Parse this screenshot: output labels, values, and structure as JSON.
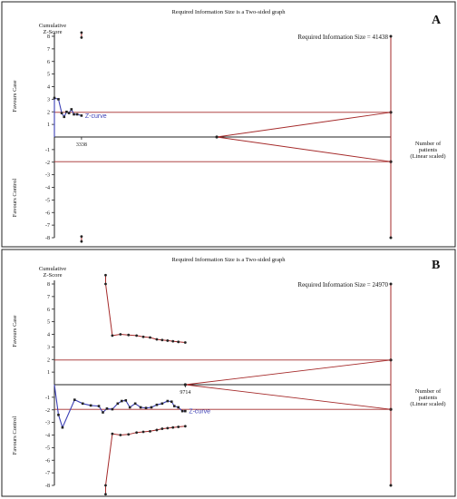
{
  "colors": {
    "boundary": "#a52a2a",
    "z_curve": "#3b3fb5",
    "axis": "#222222",
    "marker": "#222222"
  },
  "chart_data": [
    {
      "type": "line",
      "panel_label": "A",
      "title": "Required Information Size is a Two-sided graph",
      "ylabel_line1": "Cumulative",
      "ylabel_line2": "Z-Score",
      "xlabel_line1": "Number of",
      "xlabel_line2": "patients",
      "xlabel_line3": "(Linear scaled)",
      "favours_case": "Favours Case",
      "favours_control": "Favours Control",
      "ylim": [
        -8,
        8
      ],
      "xlim": [
        0,
        41438
      ],
      "yticks": [
        8,
        7,
        6,
        5,
        4,
        3,
        2,
        1,
        -1,
        -2,
        -3,
        -4,
        -5,
        -6,
        -7,
        -8
      ],
      "required_information_size": 41438,
      "ris_label": "Required Information Size = 41438",
      "x_annotation": "3338",
      "x_annotation_value": 3338,
      "z_curve_label": "Z-curve",
      "conventional_boundary": 1.96,
      "futility_wedge": {
        "x_start": 20000,
        "x_end": 41438,
        "y_end": 1.96
      },
      "upper_monitoring_boundary": [
        {
          "x": 3338,
          "y": 8.3
        },
        {
          "x": 3338,
          "y": 7.9
        }
      ],
      "lower_monitoring_boundary": [
        {
          "x": 3338,
          "y": -7.9
        },
        {
          "x": 3338,
          "y": -8.3
        }
      ],
      "z_curve": [
        {
          "x": 0,
          "y": 0
        },
        {
          "x": 0,
          "y": 3.1
        },
        {
          "x": 500,
          "y": 3.0
        },
        {
          "x": 900,
          "y": 1.9
        },
        {
          "x": 1200,
          "y": 1.6
        },
        {
          "x": 1500,
          "y": 2.0
        },
        {
          "x": 1800,
          "y": 1.9
        },
        {
          "x": 2100,
          "y": 2.2
        },
        {
          "x": 2400,
          "y": 1.8
        },
        {
          "x": 2800,
          "y": 1.8
        },
        {
          "x": 3338,
          "y": 1.7
        }
      ]
    },
    {
      "type": "line",
      "panel_label": "B",
      "title": "Required Information Size is a Two-sided graph",
      "ylabel_line1": "Cumulative",
      "ylabel_line2": "Z-Score",
      "xlabel_line1": "Number of",
      "xlabel_line2": "patients",
      "xlabel_line3": "(Linear scaled)",
      "favours_case": "Favours Case",
      "favours_control": "Favours Control",
      "ylim": [
        -8,
        8
      ],
      "xlim": [
        0,
        24970
      ],
      "yticks": [
        8,
        7,
        6,
        5,
        4,
        3,
        2,
        1,
        -1,
        -2,
        -3,
        -4,
        -5,
        -6,
        -7,
        -8
      ],
      "required_information_size": 24970,
      "ris_label": "Required Information Size = 24970",
      "x_annotation": "9714",
      "x_annotation_value": 9714,
      "z_curve_label": "Z-curve",
      "conventional_boundary": 1.96,
      "futility_wedge": {
        "x_start": 9714,
        "x_end": 24970,
        "y_end": 1.96
      },
      "upper_monitoring_boundary": [
        {
          "x": 3800,
          "y": 8.7
        },
        {
          "x": 3800,
          "y": 8.0
        },
        {
          "x": 4300,
          "y": 3.9
        },
        {
          "x": 4900,
          "y": 4.0
        },
        {
          "x": 5500,
          "y": 3.95
        },
        {
          "x": 6100,
          "y": 3.9
        },
        {
          "x": 6600,
          "y": 3.8
        },
        {
          "x": 7100,
          "y": 3.75
        },
        {
          "x": 7600,
          "y": 3.6
        },
        {
          "x": 8000,
          "y": 3.55
        },
        {
          "x": 8400,
          "y": 3.5
        },
        {
          "x": 8800,
          "y": 3.45
        },
        {
          "x": 9200,
          "y": 3.4
        },
        {
          "x": 9714,
          "y": 3.35
        }
      ],
      "lower_monitoring_boundary": [
        {
          "x": 3800,
          "y": -8.7
        },
        {
          "x": 3800,
          "y": -8.0
        },
        {
          "x": 4300,
          "y": -3.9
        },
        {
          "x": 4900,
          "y": -4.0
        },
        {
          "x": 5500,
          "y": -3.95
        },
        {
          "x": 6100,
          "y": -3.8
        },
        {
          "x": 6600,
          "y": -3.75
        },
        {
          "x": 7100,
          "y": -3.7
        },
        {
          "x": 7600,
          "y": -3.6
        },
        {
          "x": 8000,
          "y": -3.5
        },
        {
          "x": 8400,
          "y": -3.45
        },
        {
          "x": 8800,
          "y": -3.4
        },
        {
          "x": 9200,
          "y": -3.35
        },
        {
          "x": 9714,
          "y": -3.3
        }
      ],
      "z_curve": [
        {
          "x": 0,
          "y": 0
        },
        {
          "x": 300,
          "y": -2.4
        },
        {
          "x": 600,
          "y": -3.4
        },
        {
          "x": 1500,
          "y": -1.2
        },
        {
          "x": 2100,
          "y": -1.5
        },
        {
          "x": 2700,
          "y": -1.65
        },
        {
          "x": 3300,
          "y": -1.7
        },
        {
          "x": 3600,
          "y": -2.2
        },
        {
          "x": 3900,
          "y": -1.9
        },
        {
          "x": 4300,
          "y": -1.95
        },
        {
          "x": 4700,
          "y": -1.5
        },
        {
          "x": 5000,
          "y": -1.3
        },
        {
          "x": 5300,
          "y": -1.25
        },
        {
          "x": 5600,
          "y": -1.8
        },
        {
          "x": 6000,
          "y": -1.5
        },
        {
          "x": 6400,
          "y": -1.8
        },
        {
          "x": 6800,
          "y": -1.85
        },
        {
          "x": 7200,
          "y": -1.8
        },
        {
          "x": 7600,
          "y": -1.6
        },
        {
          "x": 8000,
          "y": -1.5
        },
        {
          "x": 8400,
          "y": -1.3
        },
        {
          "x": 8700,
          "y": -1.35
        },
        {
          "x": 8900,
          "y": -1.7
        },
        {
          "x": 9200,
          "y": -1.8
        },
        {
          "x": 9500,
          "y": -2.1
        },
        {
          "x": 9714,
          "y": -2.1
        }
      ]
    }
  ]
}
